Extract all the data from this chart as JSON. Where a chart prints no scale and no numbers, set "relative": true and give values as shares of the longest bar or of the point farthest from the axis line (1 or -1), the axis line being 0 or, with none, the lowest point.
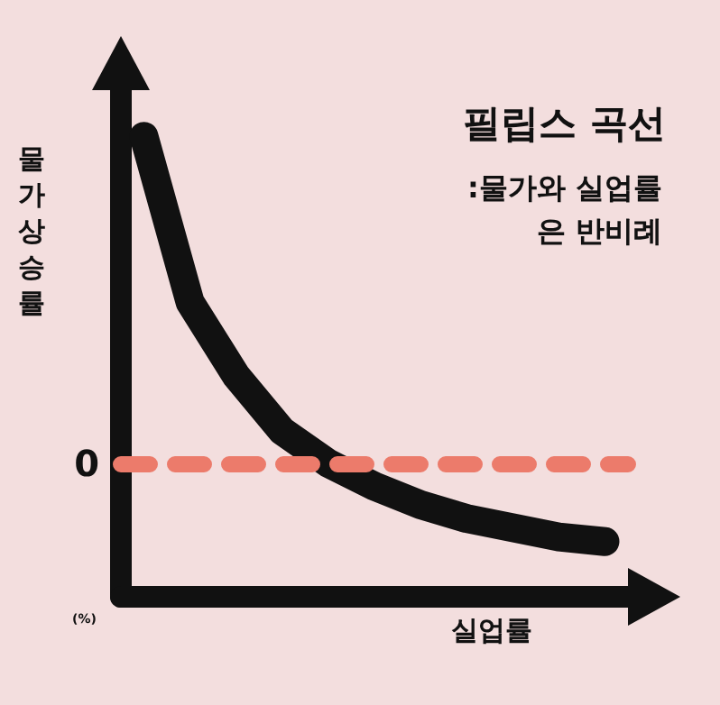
{
  "chart_data": {
    "type": "line",
    "title": "필립스 곡선",
    "subtitle": ":물가와 실업률\n은 반비례",
    "xlabel": "실업률",
    "ylabel": "물가상승률",
    "annotations": [
      "(%)"
    ],
    "categories": [
      null,
      null,
      null,
      null,
      null,
      null,
      null,
      null,
      null,
      null,
      null
    ],
    "series": [
      {
        "color": "#111111",
        "values": [
          1.0,
          0.64,
          0.48,
          0.36,
          0.29,
          0.24,
          0.2,
          0.17,
          0.15,
          0.13,
          0.12
        ]
      }
    ],
    "relative": true,
    "ref_lines": [
      {
        "axis": "y",
        "value": 0.29,
        "label": "0",
        "color": "#ec7b6b",
        "line_style": "dashed"
      }
    ],
    "grid": false,
    "line_style": "solid"
  }
}
